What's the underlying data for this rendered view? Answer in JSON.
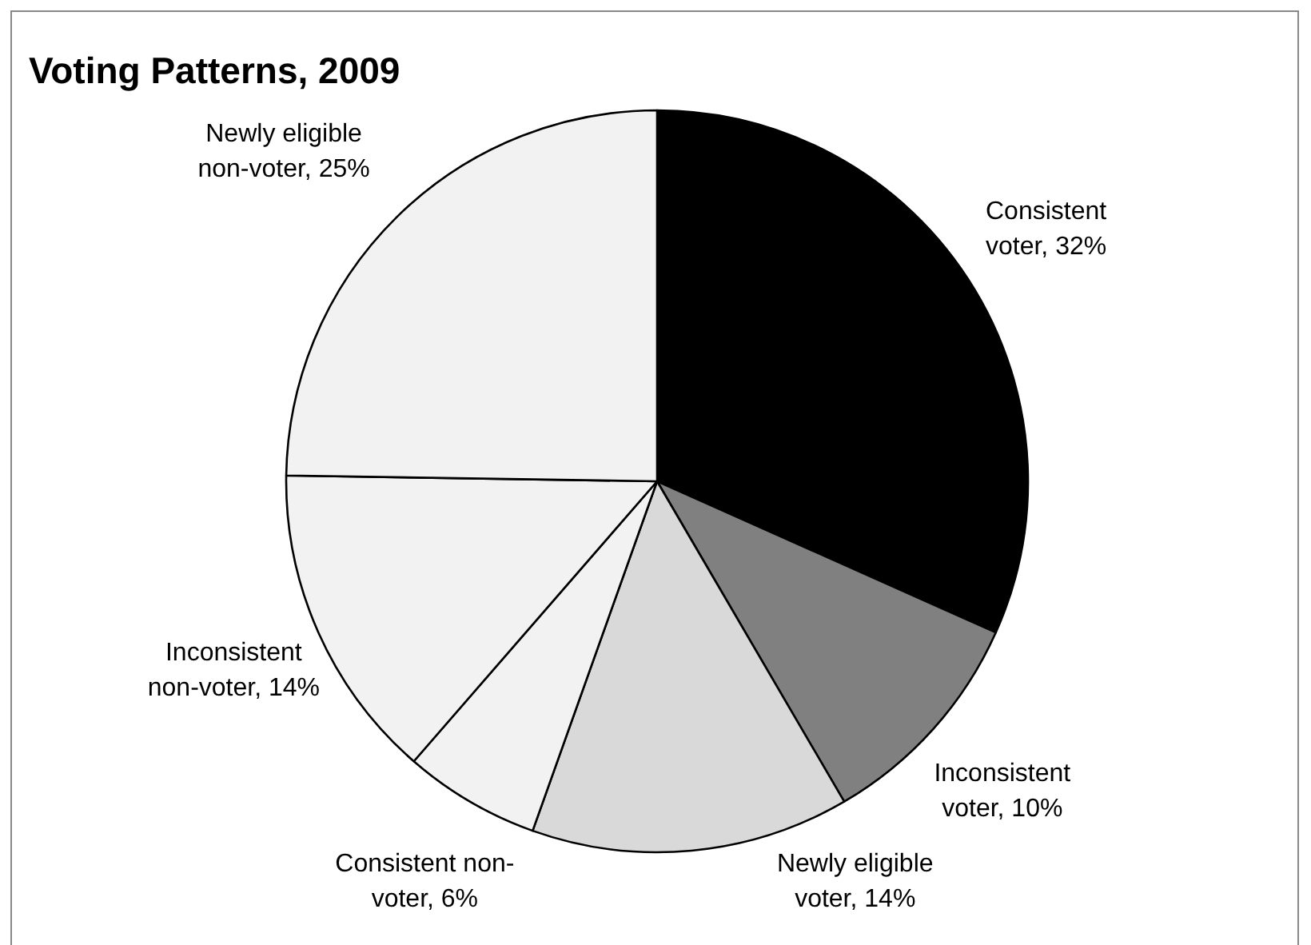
{
  "chart_data": {
    "type": "pie",
    "title": "Voting Patterns, 2009",
    "categories": [
      "Consistent voter",
      "Inconsistent voter",
      "Newly eligible voter",
      "Consistent non-voter",
      "Inconsistent non-voter",
      "Newly eligible non-voter"
    ],
    "values": [
      32,
      10,
      14,
      6,
      14,
      25
    ],
    "colors": [
      "#000000",
      "#808080",
      "#d9d9d9",
      "#f2f2f2",
      "#f2f2f2",
      "#f2f2f2"
    ],
    "value_labels": [
      "32%",
      "10%",
      "14%",
      "6%",
      "14%",
      "25%"
    ]
  }
}
